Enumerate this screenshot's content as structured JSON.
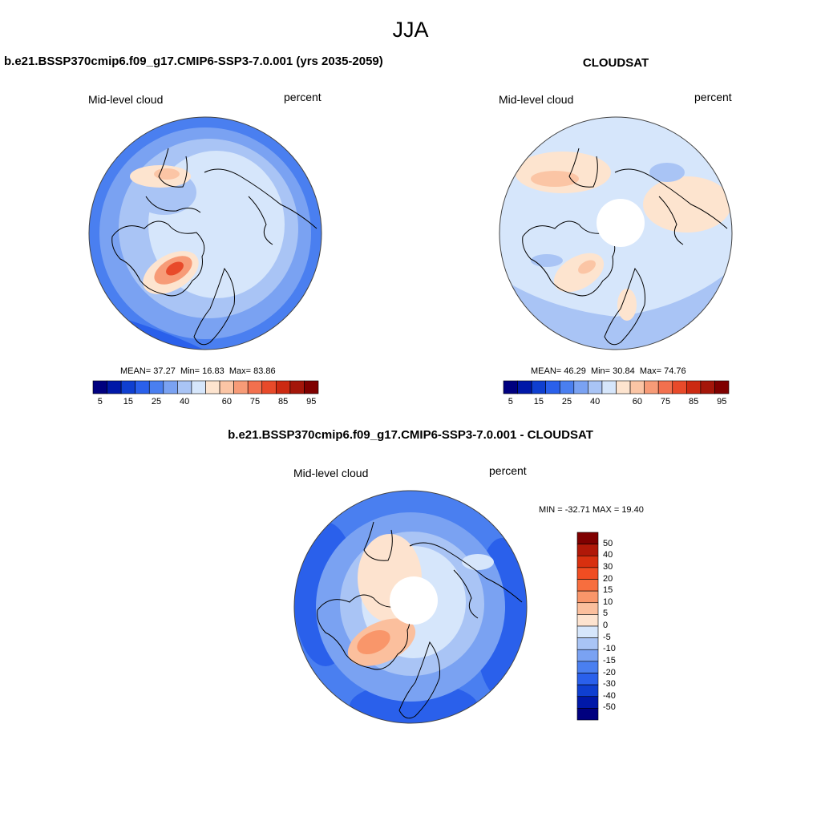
{
  "figure": {
    "season": "JJA",
    "panels": [
      {
        "title": "b.e21.BSSP370cmip6.f09_g17.CMIP6-SSP3-7.0.001 (yrs 2035-2059)",
        "variable": "Mid-level cloud",
        "units": "percent",
        "stats": {
          "mean_label": "MEAN=",
          "mean": "37.27",
          "min_label": "Min=",
          "min": "16.83",
          "max_label": "Max=",
          "max": "83.86"
        },
        "colorbar": {
          "colors": [
            "#00007f",
            "#0018a8",
            "#0f3fd0",
            "#2a60eb",
            "#4a7ff0",
            "#7aa2f2",
            "#a9c4f5",
            "#d6e6fb",
            "#fde4cf",
            "#fbc5a5",
            "#f79b77",
            "#f2704e",
            "#e84a2a",
            "#cc2a12",
            "#a4160a",
            "#7f0000"
          ],
          "tick_labels": [
            "5",
            "15",
            "25",
            "40",
            "60",
            "75",
            "85",
            "95"
          ]
        }
      },
      {
        "title": "CLOUDSAT",
        "variable": "Mid-level cloud",
        "units": "percent",
        "stats": {
          "mean_label": "MEAN=",
          "mean": "46.29",
          "min_label": "Min=",
          "min": "30.84",
          "max_label": "Max=",
          "max": "74.76"
        },
        "colorbar": {
          "colors": [
            "#00007f",
            "#0018a8",
            "#0f3fd0",
            "#2a60eb",
            "#4a7ff0",
            "#7aa2f2",
            "#a9c4f5",
            "#d6e6fb",
            "#fde4cf",
            "#fbc5a5",
            "#f79b77",
            "#f2704e",
            "#e84a2a",
            "#cc2a12",
            "#a4160a",
            "#7f0000"
          ],
          "tick_labels": [
            "5",
            "15",
            "25",
            "40",
            "60",
            "75",
            "85",
            "95"
          ]
        }
      },
      {
        "title": "b.e21.BSSP370cmip6.f09_g17.CMIP6-SSP3-7.0.001 - CLOUDSAT",
        "variable": "Mid-level cloud",
        "units": "percent",
        "stats_text": "MIN = -32.71 MAX =  19.40",
        "colorbar": {
          "colors": [
            "#7f0000",
            "#b01808",
            "#d8300f",
            "#f04d22",
            "#f76e3e",
            "#f9966a",
            "#fbbf9d",
            "#fde3cf",
            "#d6e6fb",
            "#a9c4f5",
            "#7aa2f2",
            "#4a7ff0",
            "#2a60eb",
            "#0f3fd0",
            "#0018a8",
            "#00007f"
          ],
          "tick_labels": [
            "50",
            "40",
            "30",
            "20",
            "15",
            "10",
            "5",
            "0",
            "-5",
            "-10",
            "-15",
            "-20",
            "-30",
            "-40",
            "-50"
          ]
        }
      }
    ]
  }
}
